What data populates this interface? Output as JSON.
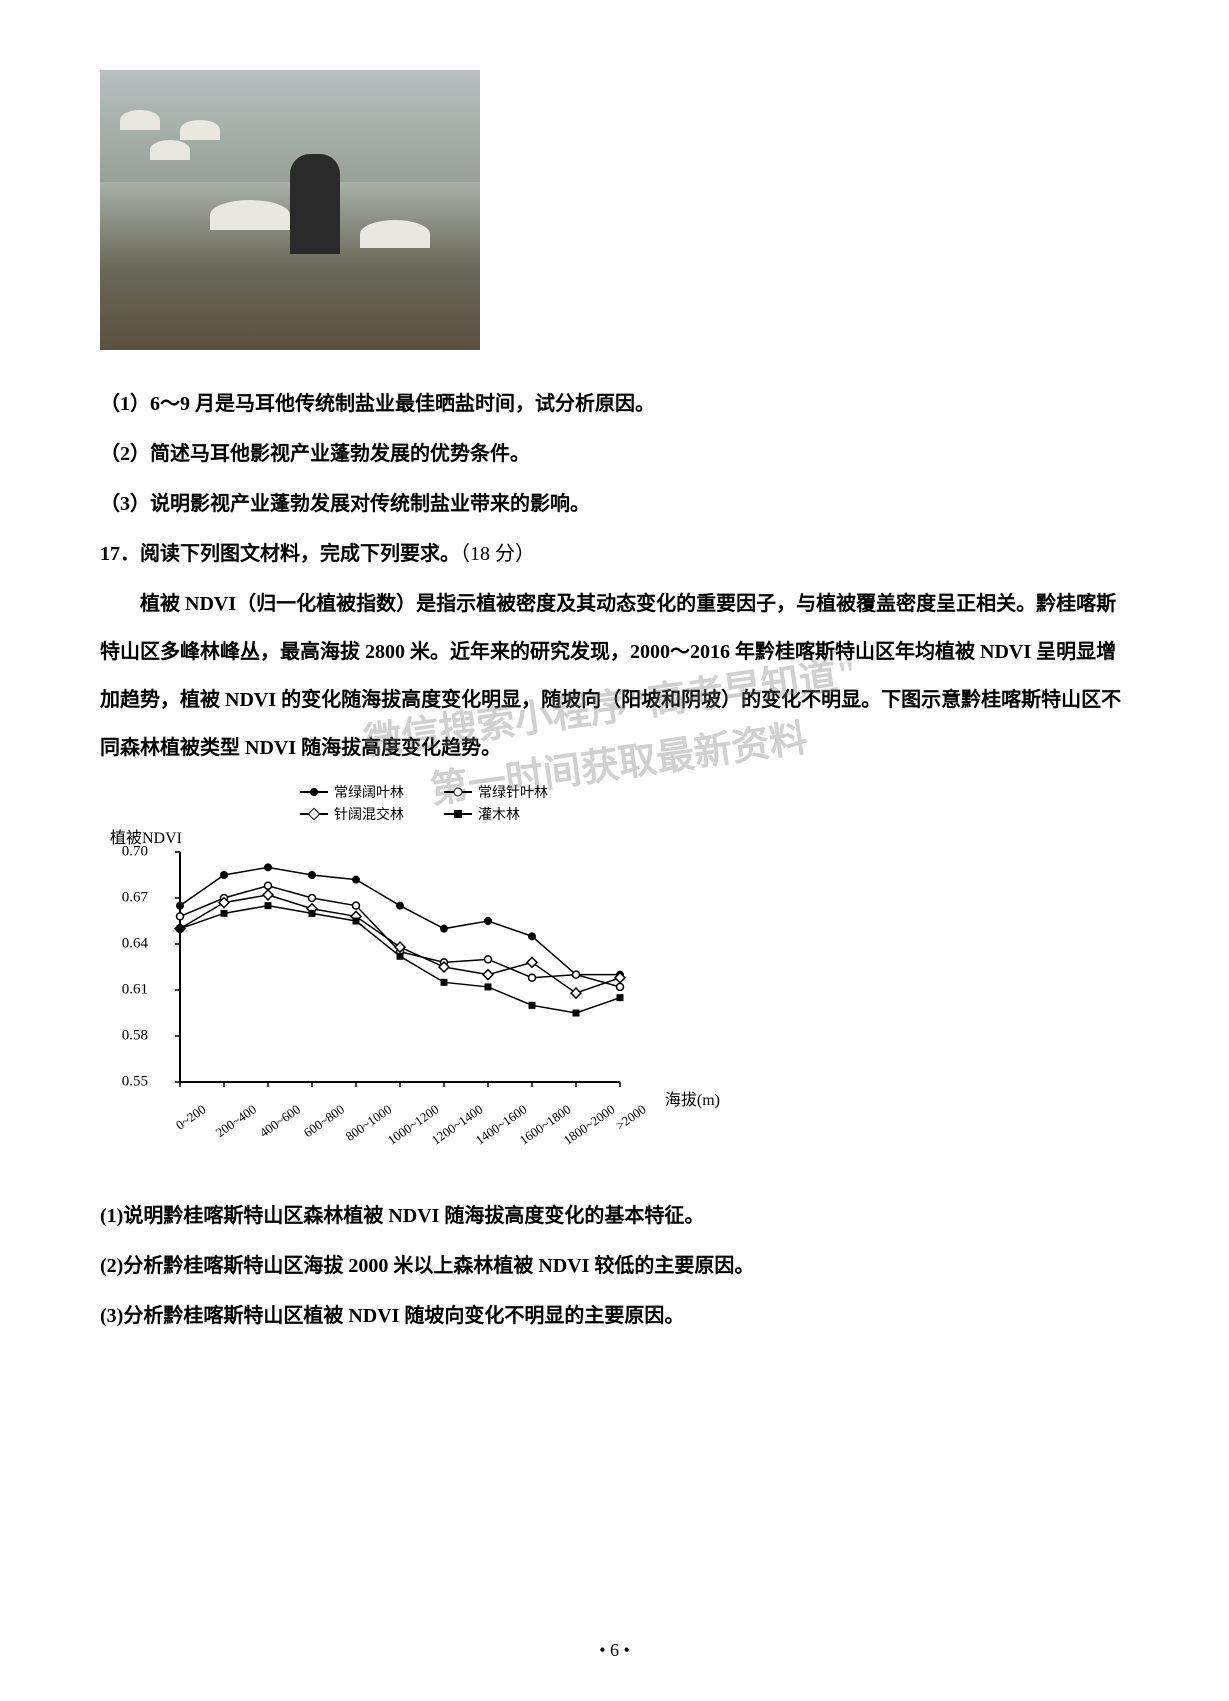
{
  "photo": {
    "description": "salt-field-worker-photo"
  },
  "questions_part1": {
    "q1": "（1）6～9 月是马耳他传统制盐业最佳晒盐时间，试分析原因。",
    "q2": "（2）简述马耳他影视产业蓬勃发展的优势条件。",
    "q3": "（3）说明影视产业蓬勃发展对传统制盐业带来的影响。"
  },
  "question_17": {
    "heading_prefix": "17．阅读下列图文材料，完成下列要求。",
    "points": "（18 分）",
    "paragraph": "植被 NDVI（归一化植被指数）是指示植被密度及其动态变化的重要因子，与植被覆盖密度呈正相关。黔桂喀斯特山区多峰林峰丛，最高海拔 2800 米。近年来的研究发现，2000～2016 年黔桂喀斯特山区年均植被 NDVI 呈明显增加趋势，植被 NDVI 的变化随海拔高度变化明显，随坡向（阳坡和阴坡）的变化不明显。下图示意黔桂喀斯特山区不同森林植被类型 NDVI 随海拔高度变化趋势。"
  },
  "watermark": {
    "line1": "微信搜索小程序\"高考早知道\"",
    "line2": "第一时间获取最新资料"
  },
  "chart": {
    "type": "line",
    "y_label": "植被NDVI",
    "x_label": "海拔(m)",
    "ylim": [
      0.55,
      0.7
    ],
    "y_ticks": [
      0.55,
      0.58,
      0.61,
      0.64,
      0.67,
      0.7
    ],
    "x_categories": [
      "0~200",
      "200~400",
      "400~600",
      "600~800",
      "800~1000",
      "1000~1200",
      "1200~1400",
      "1400~1600",
      "1600~1800",
      "1800~2000",
      ">2000"
    ],
    "legend": [
      {
        "marker": "filled-circle",
        "label": "常绿阔叶林"
      },
      {
        "marker": "open-circle",
        "label": "常绿针叶林"
      },
      {
        "marker": "open-diamond",
        "label": "针阔混交林"
      },
      {
        "marker": "filled-square",
        "label": "灌木林"
      }
    ],
    "series": {
      "filled-circle": [
        0.665,
        0.685,
        0.69,
        0.685,
        0.682,
        0.665,
        0.65,
        0.655,
        0.645,
        0.62,
        0.62
      ],
      "open-circle": [
        0.658,
        0.67,
        0.678,
        0.67,
        0.665,
        0.635,
        0.628,
        0.63,
        0.618,
        0.62,
        0.612
      ],
      "open-diamond": [
        0.65,
        0.667,
        0.672,
        0.663,
        0.658,
        0.638,
        0.625,
        0.62,
        0.628,
        0.608,
        0.618
      ],
      "filled-square": [
        0.65,
        0.66,
        0.665,
        0.66,
        0.655,
        0.632,
        0.615,
        0.612,
        0.6,
        0.595,
        0.605
      ]
    },
    "line_color": "#000000",
    "background_color": "#ffffff",
    "axis_color": "#000000",
    "fontsize_labels": 15,
    "fontsize_ticks": 13
  },
  "questions_part2": {
    "q1": "(1)说明黔桂喀斯特山区森林植被 NDVI 随海拔高度变化的基本特征。",
    "q2": "(2)分析黔桂喀斯特山区海拔 2000 米以上森林植被 NDVI 较低的主要原因。",
    "q3": "(3)分析黔桂喀斯特山区植被 NDVI 随坡向变化不明显的主要原因。"
  },
  "page_number": "• 6 •"
}
